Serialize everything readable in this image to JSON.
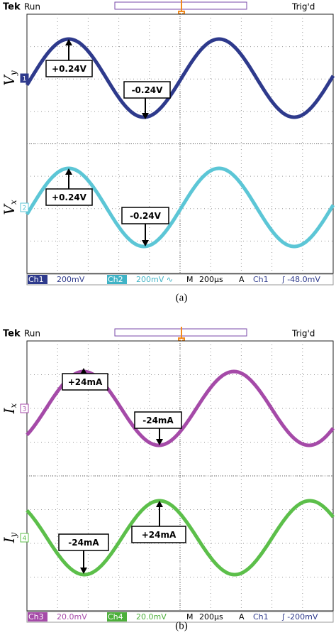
{
  "panels": [
    {
      "header": {
        "brand": "Tek",
        "state": "Run",
        "trigger_marker": "T",
        "trigger_state": "Trig'd"
      },
      "traces": [
        {
          "channel": "1",
          "symbol": "V",
          "subscript": "y",
          "color": "#2e3a8c",
          "annotations": [
            "+0.24V",
            "-0.24V"
          ]
        },
        {
          "channel": "2",
          "symbol": "V",
          "subscript": "x",
          "color": "#5cc6d6",
          "annotations": [
            "+0.24V",
            "-0.24V"
          ]
        }
      ],
      "status": [
        {
          "text": "Ch1",
          "style": "chan",
          "color": "#2e3a8c"
        },
        {
          "text": "200mV",
          "color": "#2e3a8c"
        },
        {
          "text": "Ch2",
          "style": "chan",
          "color": "#3fb3c6"
        },
        {
          "text": "200mV ∿",
          "color": "#3fb3c6"
        },
        {
          "text": "M",
          "color": "#000000"
        },
        {
          "text": "200µs",
          "color": "#000000"
        },
        {
          "text": "A",
          "color": "#000000"
        },
        {
          "text": "Ch1",
          "color": "#2e3a8c"
        },
        {
          "text": "ʃ -48.0mV",
          "color": "#2e3a8c"
        }
      ],
      "caption": "(a)"
    },
    {
      "header": {
        "brand": "Tek",
        "state": "Run",
        "trigger_marker": "T",
        "trigger_state": "Trig'd"
      },
      "traces": [
        {
          "channel": "3",
          "symbol": "I",
          "subscript": "x",
          "color": "#a54aa8",
          "annotations": [
            "+24mA",
            "-24mA"
          ]
        },
        {
          "channel": "4",
          "symbol": "I",
          "subscript": "y",
          "color": "#5cbf4a",
          "annotations": [
            "-24mA",
            "+24mA"
          ]
        }
      ],
      "status": [
        {
          "text": "Ch3",
          "style": "chan",
          "color": "#a54aa8"
        },
        {
          "text": "20.0mV",
          "color": "#a54aa8"
        },
        {
          "text": "Ch4",
          "style": "chan",
          "color": "#4caf3a"
        },
        {
          "text": "20.0mV",
          "color": "#4caf3a"
        },
        {
          "text": "M",
          "color": "#000000"
        },
        {
          "text": "200µs",
          "color": "#000000"
        },
        {
          "text": "A",
          "color": "#000000"
        },
        {
          "text": "Ch1",
          "color": "#2e3a8c"
        },
        {
          "text": "ʃ -200mV",
          "color": "#2e3a8c"
        }
      ],
      "caption": "(b)"
    }
  ]
}
